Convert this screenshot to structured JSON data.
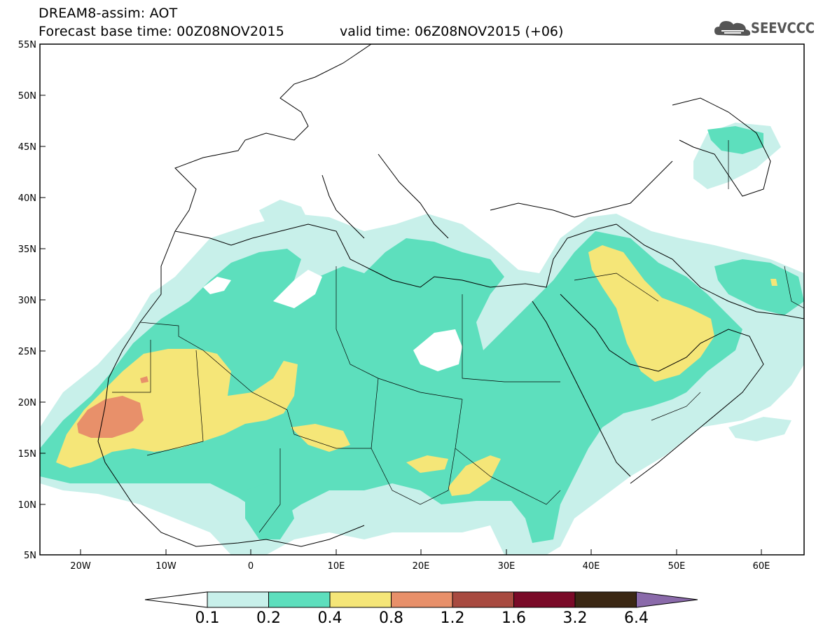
{
  "header": {
    "line1": "DREAM8-assim: AOT",
    "line2": "Forecast base time: 00Z08NOV2015",
    "valid": "valid time: 06Z08NOV2015 (+06)",
    "logo_text": "SEEVCCC",
    "logo_icon": "cloud-icon"
  },
  "axes": {
    "lat_labels": [
      "55N",
      "50N",
      "45N",
      "40N",
      "35N",
      "30N",
      "25N",
      "20N",
      "15N",
      "10N",
      "5N"
    ],
    "lon_labels": [
      "20W",
      "10W",
      "0",
      "10E",
      "20E",
      "30E",
      "40E",
      "50E",
      "60E"
    ]
  },
  "colorbar": {
    "labels": [
      "0.1",
      "0.2",
      "0.4",
      "0.8",
      "1.2",
      "1.6",
      "3.2",
      "6.4"
    ],
    "colors": [
      "#ffffff",
      "#c8f0ea",
      "#5ddfbd",
      "#f5e678",
      "#e8906a",
      "#a84a40",
      "#7a0a28",
      "#3b2814",
      "#8a6aaa"
    ]
  },
  "fields": {
    "c1": "#c8f0ea",
    "c2": "#5ddfbd",
    "c3": "#f5e678",
    "c4": "#e8906a"
  }
}
